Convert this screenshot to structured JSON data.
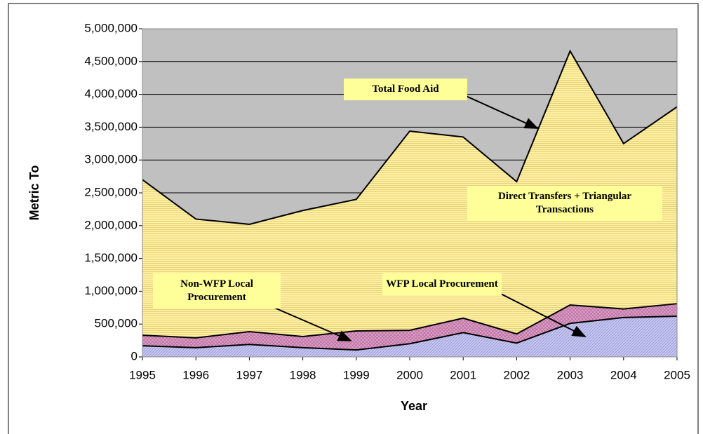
{
  "chart_data": {
    "type": "stacked-area",
    "x_label": "Year",
    "y_label": "Metric To",
    "x": [
      1995,
      1996,
      1997,
      1998,
      1999,
      2000,
      2001,
      2002,
      2003,
      2004,
      2005
    ],
    "xlim": [
      1995,
      2005
    ],
    "xticks": [
      1995,
      1996,
      1997,
      1998,
      1999,
      2000,
      2001,
      2002,
      2003,
      2004,
      2005
    ],
    "ylim": [
      0,
      5000000
    ],
    "yticks": [
      {
        "value": 0,
        "label": "0"
      },
      {
        "value": 500000,
        "label": "500,000"
      },
      {
        "value": 1000000,
        "label": "1,000,000"
      },
      {
        "value": 1500000,
        "label": "1,500,000"
      },
      {
        "value": 2000000,
        "label": "2,000,000"
      },
      {
        "value": 2500000,
        "label": "2,500,000"
      },
      {
        "value": 3000000,
        "label": "3,000,000"
      },
      {
        "value": 3500000,
        "label": "3,500,000"
      },
      {
        "value": 4000000,
        "label": "4,000,000"
      },
      {
        "value": 4500000,
        "label": "4,500,000"
      },
      {
        "value": 5000000,
        "label": "5,000,000"
      }
    ],
    "grid": true,
    "background": "#c0c0c0",
    "series": [
      {
        "name": "WFP Local Procurement",
        "color": "#c8c8f0",
        "values": [
          170000,
          140000,
          190000,
          140000,
          105000,
          200000,
          370000,
          210000,
          510000,
          600000,
          620000
        ]
      },
      {
        "name": "Non-WFP Local Procurement",
        "color": "#d9a0c8",
        "values": [
          160000,
          150000,
          195000,
          170000,
          290000,
          205000,
          220000,
          140000,
          280000,
          130000,
          190000
        ]
      },
      {
        "name": "Direct Transfers + Triangular Transactions",
        "color": "#fff0a0",
        "values": [
          2370000,
          1810000,
          1635000,
          1920000,
          2005000,
          3035000,
          2760000,
          2320000,
          3870000,
          2520000,
          3000000
        ]
      }
    ],
    "annotation": "Total Food Aid"
  }
}
